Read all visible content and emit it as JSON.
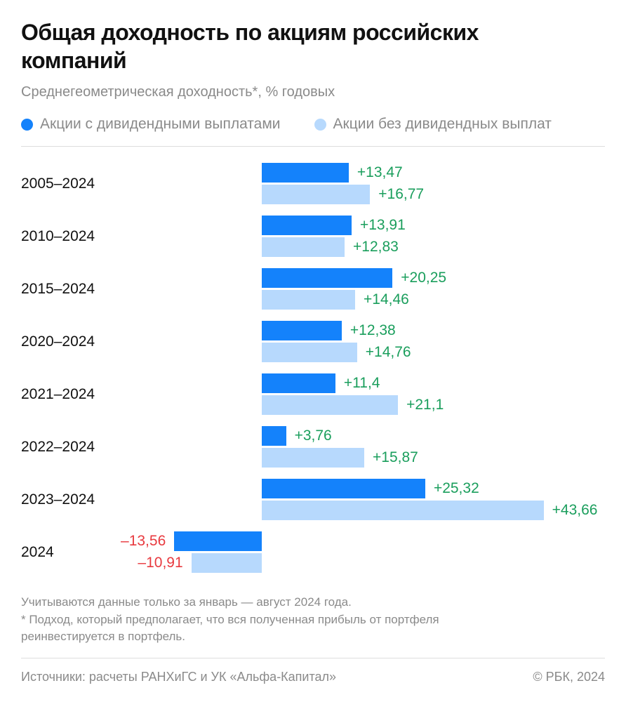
{
  "header": {
    "title": "Общая доходность по акциям российских компаний",
    "subtitle": "Среднегеометрическая доходность*, % годовых"
  },
  "colors": {
    "with_div": "#1482fb",
    "without_div": "#b7d9fd",
    "positive": "#1a9e5c",
    "negative": "#e83a3f"
  },
  "chart_data": {
    "type": "bar",
    "orientation": "horizontal",
    "categories": [
      "2005–2024",
      "2010–2024",
      "2015–2024",
      "2020–2024",
      "2021–2024",
      "2022–2024",
      "2023–2024",
      "2024"
    ],
    "series": [
      {
        "name": "Акции с дивидендными выплатами",
        "values": [
          13.47,
          13.91,
          20.25,
          12.38,
          11.4,
          3.76,
          25.32,
          -13.56
        ],
        "labels": [
          "+13,47",
          "+13,91",
          "+20,25",
          "+12,38",
          "+11,4",
          "+3,76",
          "+25,32",
          "–13,56"
        ]
      },
      {
        "name": "Акции без дивидендных выплат",
        "values": [
          16.77,
          12.83,
          14.46,
          14.76,
          21.1,
          15.87,
          43.66,
          -10.91
        ],
        "labels": [
          "+16,77",
          "+12,83",
          "+14,46",
          "+14,76",
          "+21,1",
          "+15,87",
          "+43,66",
          "–10,91"
        ]
      }
    ],
    "grid": false,
    "legend_position": "top-left"
  },
  "footer": {
    "notes": [
      "Учитываются данные только за январь — август 2024 года.",
      "* Подход, который предполагает, что вся полученная прибыль от портфеля",
      "реинвестируется в портфель."
    ],
    "source": "Источники: расчеты РАНХиГС и УК «Альфа-Капитал»",
    "copyright": "© РБК, 2024"
  }
}
